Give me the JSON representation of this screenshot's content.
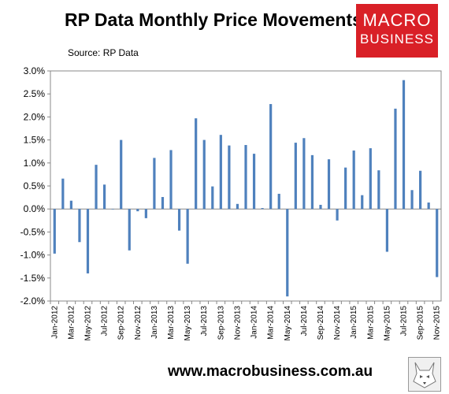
{
  "header": {
    "title": "RP Data Monthly Price Movements",
    "source": "Source: RP Data"
  },
  "logo": {
    "line1": "MACRO",
    "line2": "BUSINESS"
  },
  "footer": {
    "website": "www.macrobusiness.com.au"
  },
  "colors": {
    "bar": "#4f81bd",
    "logo_bg": "#d92027"
  },
  "chart_data": {
    "type": "bar",
    "title": "RP Data Monthly Price Movements",
    "xlabel": "",
    "ylabel": "",
    "ylim": [
      -0.02,
      0.03
    ],
    "y_ticks": [
      "3.0%",
      "2.5%",
      "2.0%",
      "1.5%",
      "1.0%",
      "0.5%",
      "0.0%",
      "-0.5%",
      "-1.0%",
      "-1.5%",
      "-2.0%"
    ],
    "x_tick_labels": [
      "Jan-2012",
      "Mar-2012",
      "May-2012",
      "Jul-2012",
      "Sep-2012",
      "Nov-2012",
      "Jan-2013",
      "Mar-2013",
      "May-2013",
      "Jul-2013",
      "Sep-2013",
      "Nov-2013",
      "Jan-2014",
      "Mar-2014",
      "May-2014",
      "Jul-2014",
      "Sep-2014",
      "Nov-2014",
      "Jan-2015",
      "Mar-2015",
      "May-2015",
      "Jul-2015",
      "Sep-2015",
      "Nov-2015"
    ],
    "grid": false,
    "categories": [
      "Jan-2012",
      "Feb-2012",
      "Mar-2012",
      "Apr-2012",
      "May-2012",
      "Jun-2012",
      "Jul-2012",
      "Aug-2012",
      "Sep-2012",
      "Oct-2012",
      "Nov-2012",
      "Dec-2012",
      "Jan-2013",
      "Feb-2013",
      "Mar-2013",
      "Apr-2013",
      "May-2013",
      "Jun-2013",
      "Jul-2013",
      "Aug-2013",
      "Sep-2013",
      "Oct-2013",
      "Nov-2013",
      "Dec-2013",
      "Jan-2014",
      "Feb-2014",
      "Mar-2014",
      "Apr-2014",
      "May-2014",
      "Jun-2014",
      "Jul-2014",
      "Aug-2014",
      "Sep-2014",
      "Oct-2014",
      "Nov-2014",
      "Dec-2014",
      "Jan-2015",
      "Feb-2015",
      "Mar-2015",
      "Apr-2015",
      "May-2015",
      "Jun-2015",
      "Jul-2015",
      "Aug-2015",
      "Sep-2015",
      "Oct-2015",
      "Nov-2015"
    ],
    "values": [
      -0.0097,
      0.0066,
      0.0018,
      -0.0072,
      -0.014,
      0.0096,
      0.0053,
      0.0,
      0.015,
      -0.009,
      -0.0005,
      -0.002,
      0.0111,
      0.0026,
      0.0128,
      -0.0047,
      -0.0119,
      0.0197,
      0.015,
      0.0049,
      0.0161,
      0.0138,
      0.0011,
      0.0139,
      0.012,
      0.0002,
      0.0228,
      0.0033,
      -0.019,
      0.0144,
      0.0154,
      0.0117,
      0.0009,
      0.0108,
      -0.0025,
      0.009,
      0.0127,
      0.003,
      0.0132,
      0.0084,
      -0.0093,
      0.0218,
      0.028,
      0.0041,
      0.0083,
      0.0014,
      -0.0148
    ]
  }
}
